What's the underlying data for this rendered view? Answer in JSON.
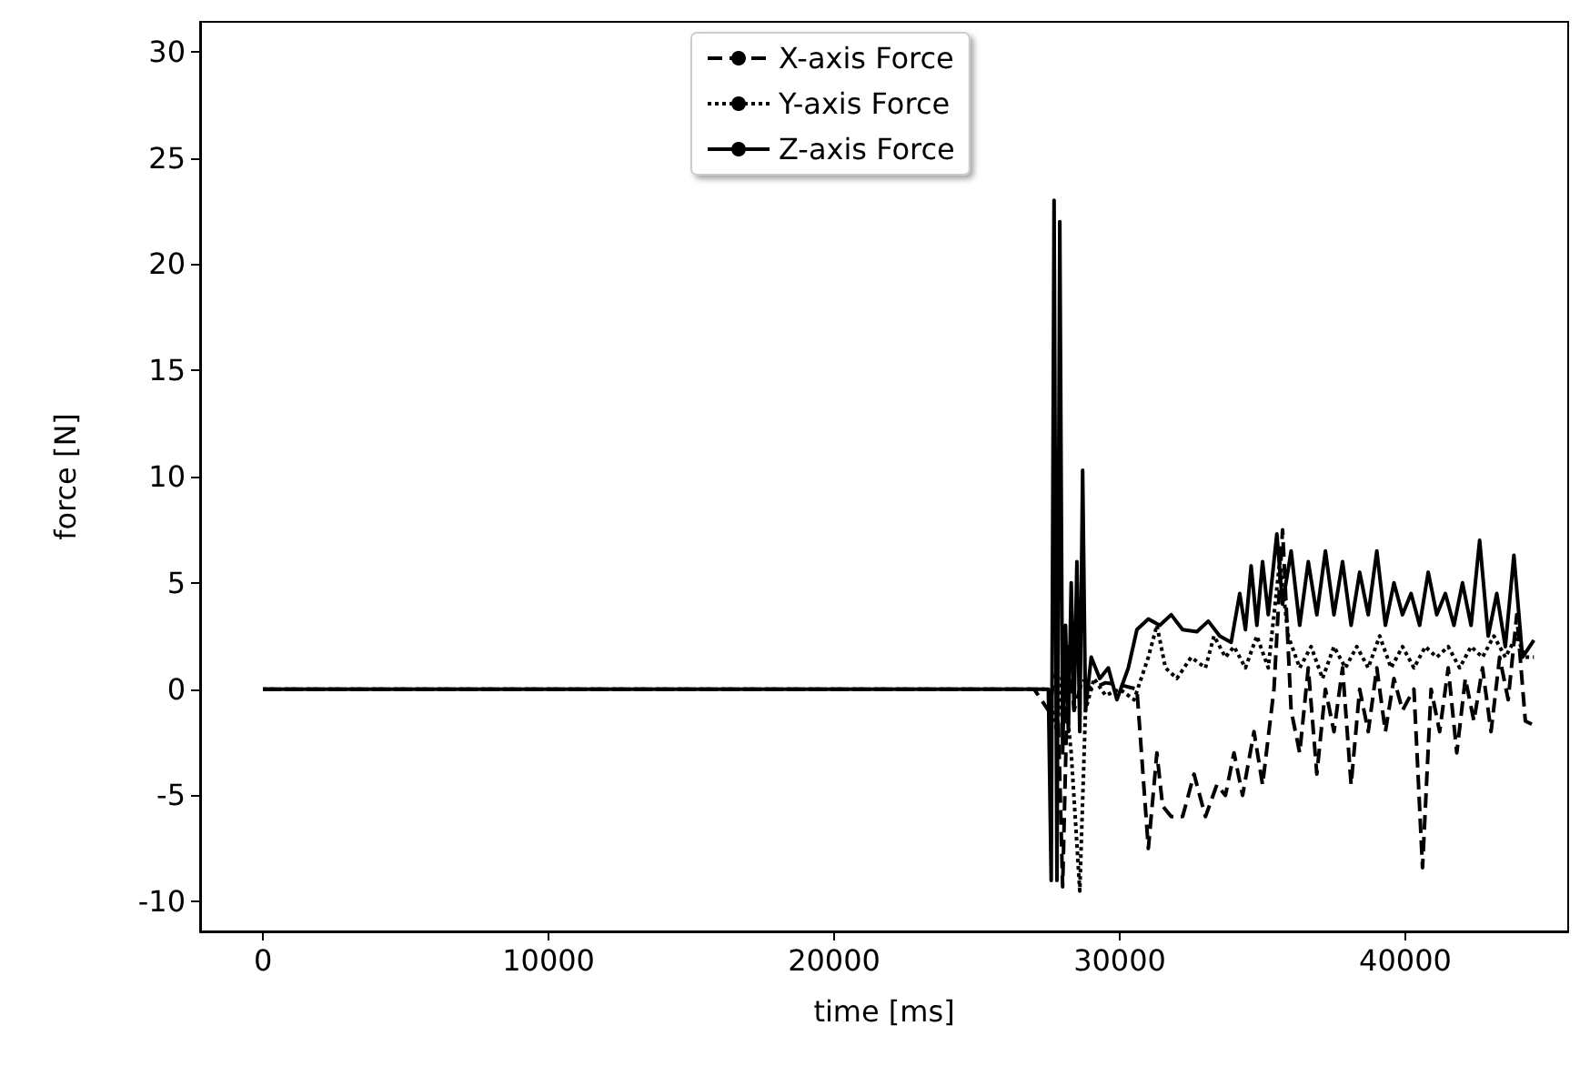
{
  "chart_data": {
    "type": "line",
    "xlabel": "time [ms]",
    "ylabel": "force [N]",
    "xlim": [
      -2200,
      45700
    ],
    "xticks": [
      0,
      10000,
      20000,
      30000,
      40000
    ],
    "ylim": [
      -11.4,
      31.4
    ],
    "yticks": [
      -10,
      -5,
      0,
      5,
      10,
      15,
      20,
      25,
      30
    ],
    "grid": false,
    "legend": "top",
    "marker": "none",
    "series": [
      {
        "name": "X-axis Force",
        "color": "#000000",
        "line_style": "dashed",
        "x": [
          0,
          27000,
          27500,
          27800,
          28000,
          28200,
          28400,
          28700,
          29000,
          29500,
          30000,
          30600,
          31000,
          31300,
          31500,
          31800,
          32200,
          32600,
          33000,
          33400,
          33700,
          34000,
          34300,
          34700,
          35000,
          35400,
          35700,
          36000,
          36300,
          36600,
          36900,
          37200,
          37500,
          37800,
          38100,
          38400,
          38700,
          39000,
          39300,
          39600,
          39900,
          40300,
          40600,
          40900,
          41200,
          41500,
          41800,
          42100,
          42400,
          42700,
          43000,
          43300,
          43600,
          43900,
          44200,
          44500
        ],
        "values": [
          0,
          0,
          -1,
          1,
          -9.3,
          2,
          -1,
          0.5,
          0,
          0.3,
          0.2,
          0,
          -7.5,
          -3,
          -5.5,
          -6,
          -6,
          -4,
          -6,
          -4.5,
          -5,
          -3,
          -5,
          -2,
          -4.5,
          0,
          7.5,
          -1,
          -3,
          1,
          -4,
          0,
          -2,
          1,
          -4.5,
          0,
          -2,
          1,
          -2,
          0.5,
          -1,
          0,
          -8.4,
          0,
          -2,
          1,
          -3,
          0.5,
          -1.5,
          1,
          -2,
          1.5,
          -0.5,
          3.5,
          -1.5,
          -1.7
        ]
      },
      {
        "name": "Y-axis Force",
        "color": "#000000",
        "line_style": "dotted",
        "x": [
          0,
          27500,
          27800,
          28000,
          28300,
          28600,
          28800,
          29100,
          29500,
          30000,
          30500,
          31000,
          31300,
          31600,
          32000,
          32500,
          33000,
          33300,
          33700,
          34000,
          34400,
          34800,
          35200,
          35600,
          35900,
          36300,
          36700,
          37100,
          37500,
          37900,
          38300,
          38700,
          39100,
          39500,
          39900,
          40300,
          40700,
          41100,
          41500,
          41900,
          42300,
          42700,
          43100,
          43500,
          43900,
          44200,
          44500
        ],
        "values": [
          0,
          0,
          -2,
          1,
          -3,
          -9.5,
          -1,
          0.5,
          -0.3,
          0,
          -0.5,
          1.5,
          3,
          1,
          0.5,
          1.5,
          1,
          2.5,
          1.5,
          2,
          1,
          2.5,
          1,
          6,
          2.5,
          1,
          2,
          0.5,
          2,
          1,
          2,
          1,
          2.5,
          1,
          2,
          1,
          2,
          1.5,
          2,
          1,
          2,
          1.5,
          2.5,
          1.5,
          2.5,
          1.5,
          1.5
        ]
      },
      {
        "name": "Z-axis Force",
        "color": "#000000",
        "line_style": "solid",
        "x": [
          0,
          27500,
          27600,
          27700,
          27800,
          27900,
          28000,
          28100,
          28200,
          28300,
          28400,
          28500,
          28600,
          28700,
          28800,
          29000,
          29300,
          29600,
          29900,
          30300,
          30600,
          31000,
          31400,
          31800,
          32200,
          32700,
          33100,
          33500,
          33900,
          34200,
          34400,
          34600,
          34800,
          35000,
          35200,
          35500,
          35700,
          36000,
          36300,
          36600,
          36900,
          37200,
          37500,
          37800,
          38100,
          38400,
          38700,
          39000,
          39300,
          39600,
          39900,
          40200,
          40500,
          40800,
          41100,
          41400,
          41700,
          42000,
          42300,
          42600,
          42900,
          43200,
          43500,
          43800,
          44100,
          44500
        ],
        "values": [
          0,
          0,
          -9,
          23,
          -9,
          22,
          -3,
          3,
          -2,
          5,
          -1,
          6,
          -2,
          10.3,
          -1,
          1.5,
          0.5,
          1,
          -0.5,
          1,
          2.8,
          3.3,
          3,
          3.5,
          2.8,
          2.7,
          3.2,
          2.5,
          2.2,
          4.5,
          2.8,
          5.8,
          3,
          6,
          3.5,
          7.3,
          4,
          6.5,
          3,
          6,
          3.5,
          6.5,
          3.5,
          6,
          3,
          5.5,
          3.5,
          6.5,
          3,
          5,
          3.5,
          4.5,
          3,
          5.5,
          3.5,
          4.5,
          3,
          5,
          3,
          7,
          2.5,
          4.5,
          2,
          6.3,
          1.5,
          2.3
        ]
      }
    ]
  }
}
